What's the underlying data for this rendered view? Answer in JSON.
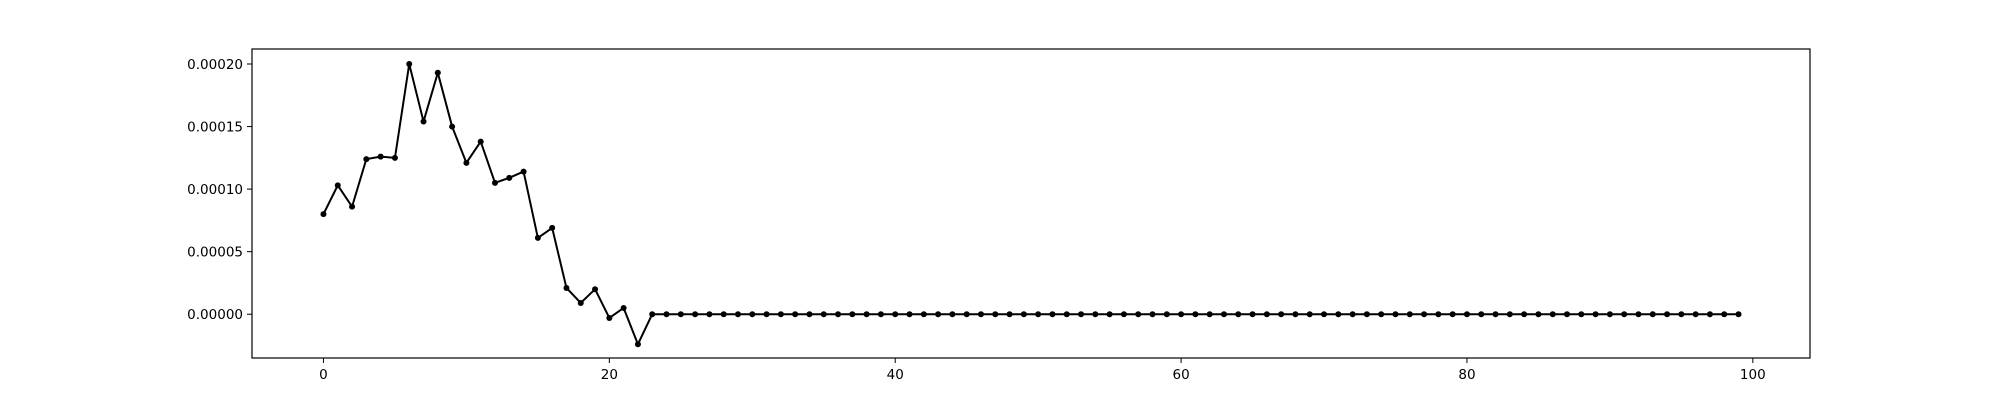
{
  "chart_data": {
    "type": "line",
    "title": "",
    "xlabel": "",
    "ylabel": "",
    "xlim": [
      -5,
      104
    ],
    "ylim": [
      -3.5e-05,
      0.000212
    ],
    "grid": false,
    "legend": "none",
    "x_ticks": [
      0,
      20,
      40,
      60,
      80,
      100
    ],
    "x_tick_labels": [
      "0",
      "20",
      "40",
      "60",
      "80",
      "100"
    ],
    "y_ticks": [
      0.0,
      5e-05,
      0.0001,
      0.00015,
      0.0002
    ],
    "y_tick_labels": [
      "0.00000",
      "0.00005",
      "0.00010",
      "0.00015",
      "0.00020"
    ],
    "series": [
      {
        "color": "#000000",
        "marker": "dot",
        "x": [
          0,
          1,
          2,
          3,
          4,
          5,
          6,
          7,
          8,
          9,
          10,
          11,
          12,
          13,
          14,
          15,
          16,
          17,
          18,
          19,
          20,
          21,
          22,
          23,
          24,
          25,
          26,
          27,
          28,
          29,
          30,
          31,
          32,
          33,
          34,
          35,
          36,
          37,
          38,
          39,
          40,
          41,
          42,
          43,
          44,
          45,
          46,
          47,
          48,
          49,
          50,
          51,
          52,
          53,
          54,
          55,
          56,
          57,
          58,
          59,
          60,
          61,
          62,
          63,
          64,
          65,
          66,
          67,
          68,
          69,
          70,
          71,
          72,
          73,
          74,
          75,
          76,
          77,
          78,
          79,
          80,
          81,
          82,
          83,
          84,
          85,
          86,
          87,
          88,
          89,
          90,
          91,
          92,
          93,
          94,
          95,
          96,
          97,
          98,
          99
        ],
        "y": [
          8e-05,
          0.000103,
          8.6e-05,
          0.000124,
          0.000126,
          0.000125,
          0.0002,
          0.000154,
          0.000193,
          0.00015,
          0.000121,
          0.000138,
          0.000105,
          0.000109,
          0.000114,
          6.1e-05,
          6.9e-05,
          2.1e-05,
          9e-06,
          2e-05,
          -3e-06,
          5e-06,
          -2.4e-05,
          0,
          0,
          0,
          0,
          0,
          0,
          0,
          0,
          0,
          0,
          0,
          0,
          0,
          0,
          0,
          0,
          0,
          0,
          0,
          0,
          0,
          0,
          0,
          0,
          0,
          0,
          0,
          0,
          0,
          0,
          0,
          0,
          0,
          0,
          0,
          0,
          0,
          0,
          0,
          0,
          0,
          0,
          0,
          0,
          0,
          0,
          0,
          0,
          0,
          0,
          0,
          0,
          0,
          0,
          0,
          0,
          0,
          0,
          0,
          0,
          0,
          0,
          0,
          0,
          0,
          0,
          0,
          0,
          0,
          0,
          0,
          0,
          0,
          0,
          0,
          0,
          0
        ]
      }
    ]
  }
}
